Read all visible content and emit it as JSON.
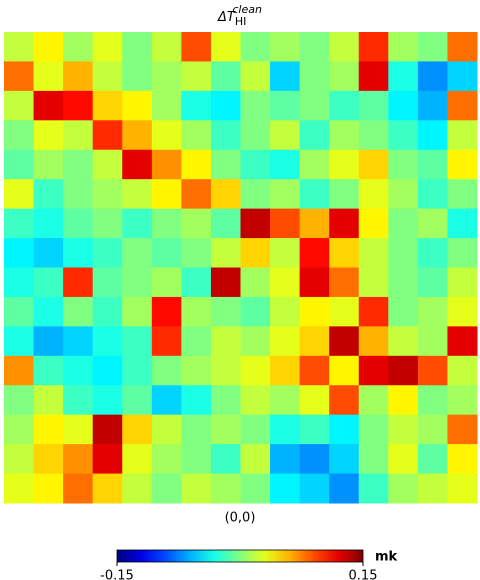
{
  "chart_data": {
    "type": "heatmap",
    "title": {
      "base": "ΔT",
      "sub": "HI",
      "sup": "clean"
    },
    "xlabel": "(0,0)",
    "colormap": "jet",
    "colorbar_label": "mk",
    "zlim": [
      -0.15,
      0.15
    ],
    "zticks": [
      -0.15,
      0.15
    ],
    "z": [
      [
        0.02,
        0.04,
        0.01,
        0.03,
        0.0,
        0.02,
        0.09,
        0.03,
        0.0,
        0.01,
        0.0,
        0.02,
        0.1,
        0.01,
        0.0,
        0.08
      ],
      [
        0.08,
        0.03,
        0.06,
        0.02,
        0.0,
        0.01,
        0.02,
        -0.01,
        0.02,
        -0.05,
        0.0,
        0.01,
        0.12,
        -0.03,
        -0.07,
        -0.05
      ],
      [
        0.02,
        0.12,
        0.11,
        0.05,
        0.04,
        0.01,
        -0.03,
        -0.04,
        0.0,
        -0.01,
        0.0,
        -0.02,
        -0.01,
        -0.04,
        -0.06,
        0.08
      ],
      [
        0.0,
        0.03,
        0.02,
        0.1,
        0.06,
        0.03,
        0.01,
        -0.02,
        0.0,
        0.02,
        -0.02,
        0.01,
        0.0,
        -0.02,
        -0.04,
        0.02
      ],
      [
        -0.01,
        0.01,
        0.0,
        0.02,
        0.12,
        0.07,
        0.04,
        0.0,
        -0.02,
        -0.03,
        0.01,
        0.03,
        0.05,
        0.0,
        -0.01,
        0.04
      ],
      [
        0.03,
        -0.02,
        0.0,
        0.01,
        0.02,
        0.04,
        0.08,
        0.05,
        0.0,
        0.01,
        -0.02,
        0.0,
        0.03,
        0.01,
        -0.02,
        0.0
      ],
      [
        -0.02,
        -0.03,
        -0.01,
        0.0,
        -0.02,
        0.0,
        0.01,
        -0.01,
        0.13,
        0.09,
        0.06,
        0.12,
        0.04,
        0.0,
        0.01,
        -0.03
      ],
      [
        -0.04,
        -0.05,
        -0.03,
        -0.02,
        0.0,
        -0.01,
        0.0,
        0.02,
        0.05,
        0.02,
        0.11,
        0.05,
        0.02,
        0.0,
        -0.02,
        0.0
      ],
      [
        -0.03,
        -0.02,
        0.1,
        -0.01,
        0.0,
        0.01,
        -0.02,
        0.13,
        0.01,
        0.03,
        0.12,
        0.08,
        0.02,
        0.0,
        -0.01,
        0.02
      ],
      [
        -0.01,
        -0.03,
        0.0,
        -0.02,
        0.01,
        0.11,
        0.01,
        0.0,
        -0.01,
        0.02,
        0.04,
        0.03,
        0.1,
        0.0,
        0.01,
        0.03
      ],
      [
        -0.03,
        -0.06,
        -0.05,
        -0.03,
        -0.02,
        0.1,
        0.0,
        0.02,
        0.01,
        0.03,
        0.05,
        0.13,
        0.06,
        0.02,
        0.01,
        0.12
      ],
      [
        0.07,
        -0.02,
        -0.03,
        -0.04,
        -0.02,
        0.0,
        0.01,
        0.02,
        0.03,
        0.05,
        0.09,
        0.04,
        0.12,
        0.13,
        0.09,
        0.02
      ],
      [
        0.0,
        0.02,
        -0.02,
        -0.03,
        -0.01,
        -0.05,
        -0.03,
        0.0,
        0.02,
        0.01,
        0.03,
        0.09,
        0.01,
        0.04,
        0.0,
        0.01
      ],
      [
        0.01,
        0.04,
        0.03,
        0.13,
        0.05,
        0.02,
        0.0,
        0.01,
        0.0,
        -0.03,
        -0.02,
        -0.04,
        0.0,
        0.02,
        0.01,
        0.08
      ],
      [
        0.02,
        0.05,
        0.07,
        0.12,
        0.03,
        0.01,
        0.0,
        -0.02,
        0.02,
        -0.06,
        -0.07,
        -0.05,
        0.0,
        0.03,
        -0.01,
        0.04
      ],
      [
        0.03,
        0.04,
        0.08,
        0.05,
        0.02,
        0.0,
        0.02,
        0.01,
        0.0,
        -0.04,
        -0.05,
        -0.07,
        -0.02,
        0.01,
        0.02,
        0.03
      ]
    ]
  }
}
